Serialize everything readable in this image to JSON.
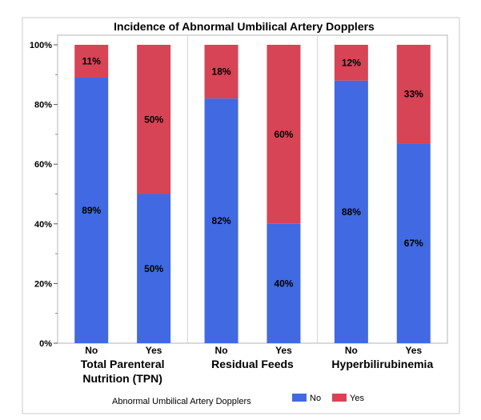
{
  "chart_data": {
    "type": "bar",
    "stacked": true,
    "title": "Incidence of Abnormal Umbilical Artery Dopplers",
    "ylim": [
      0,
      100
    ],
    "yticks": [
      "0%",
      "20%",
      "40%",
      "60%",
      "80%",
      "100%"
    ],
    "groups": [
      {
        "name_lines": [
          "Total Parenteral",
          "Nutrition (TPN)"
        ],
        "categories": [
          "No",
          "Yes"
        ]
      },
      {
        "name_lines": [
          "Residual Feeds"
        ],
        "categories": [
          "No",
          "Yes"
        ]
      },
      {
        "name_lines": [
          "Hyperbilirubinemia"
        ],
        "categories": [
          "No",
          "Yes"
        ]
      }
    ],
    "series": [
      {
        "name": "No",
        "color": "#4169E1",
        "values": [
          89,
          50,
          82,
          40,
          88,
          67
        ],
        "labels": [
          "89%",
          "50%",
          "82%",
          "40%",
          "88%",
          "67%"
        ]
      },
      {
        "name": "Yes",
        "color": "#D64455",
        "values": [
          11,
          50,
          18,
          60,
          12,
          33
        ],
        "labels": [
          "11%",
          "50%",
          "18%",
          "60%",
          "12%",
          "33%"
        ]
      }
    ],
    "legend": {
      "title": "Abnormal Umbilical Artery Dopplers",
      "placement": "bottom"
    },
    "grid": false
  }
}
